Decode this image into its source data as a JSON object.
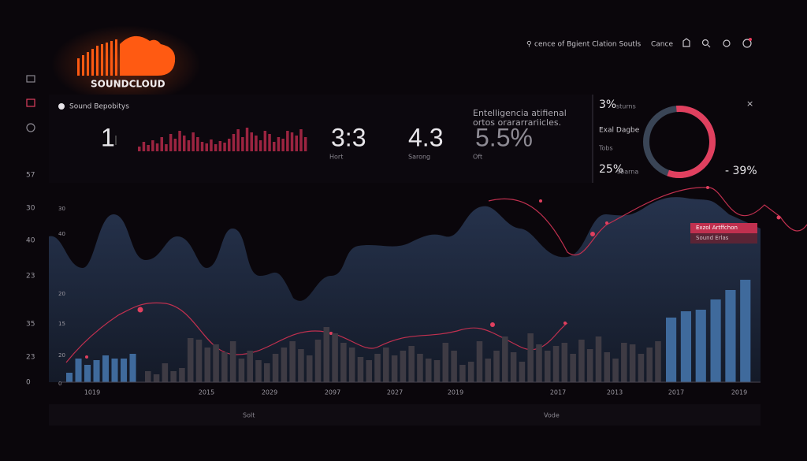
{
  "brand": "SOUNDCLOUD",
  "header": {
    "search": "cence of Bgient Clation Soutls",
    "cancel": "Cance"
  },
  "panel": {
    "title": "Sound Bepobitys",
    "stats": [
      {
        "value": "1"
      },
      {
        "value": "3:3",
        "label": "Hort"
      },
      {
        "value": "4.3",
        "label": "Sarong"
      },
      {
        "value": "5.5%",
        "label": "Oft"
      }
    ],
    "note": [
      "Entelligencia atifienal",
      "ortos  orararrariicles."
    ],
    "mini_bars": [
      6,
      12,
      8,
      14,
      10,
      18,
      9,
      22,
      16,
      26,
      20,
      14,
      24,
      18,
      12,
      10,
      15,
      9,
      13,
      11,
      16,
      22,
      28,
      18,
      30,
      24,
      20,
      14,
      26,
      22,
      12,
      18,
      16,
      26,
      24,
      20,
      28,
      18
    ]
  },
  "donut": {
    "top": {
      "value": "3%",
      "label": "sturns"
    },
    "legend": [
      "Exal Dagbe",
      "Tobs"
    ],
    "bottom": {
      "value": "25%",
      "label": "sbarna"
    },
    "change": "- 39%",
    "close": "×"
  },
  "chart": {
    "left_labels": [
      "57",
      "30",
      "40",
      "23",
      "35",
      "23",
      "0"
    ],
    "inner_labels": [
      "30",
      "40",
      "20",
      "15",
      "20",
      "0"
    ],
    "x_labels": [
      "1019",
      "2015",
      "2029",
      "2097",
      "2027",
      "2019",
      "2017",
      "2013",
      "2017",
      "2019"
    ],
    "tooltip": [
      "Exzol Artffchon",
      "Sound Erlas"
    ],
    "segments": [
      {
        "color": "#3f6a9c",
        "values": [
          12,
          30,
          22,
          28,
          34,
          30,
          30,
          36
        ]
      },
      {
        "color": "#3e3b44",
        "values": [
          14,
          10,
          24,
          14,
          18,
          56,
          54,
          44,
          48,
          38,
          52,
          30,
          40,
          28,
          24,
          36,
          44,
          52,
          42,
          34,
          54,
          70,
          62,
          50,
          44,
          32,
          28,
          36,
          44,
          34,
          40,
          46,
          36,
          30,
          28,
          50,
          40,
          22,
          26,
          52,
          30,
          40,
          58,
          38,
          26,
          62,
          48,
          40,
          46,
          50,
          36,
          54,
          42,
          58,
          38,
          30,
          50,
          48,
          36,
          44,
          52
        ]
      },
      {
        "color": "#3f6a9c",
        "values": [
          82,
          90,
          92,
          105,
          117,
          130
        ]
      }
    ]
  },
  "footer": [
    "Solt",
    "Vode"
  ]
}
